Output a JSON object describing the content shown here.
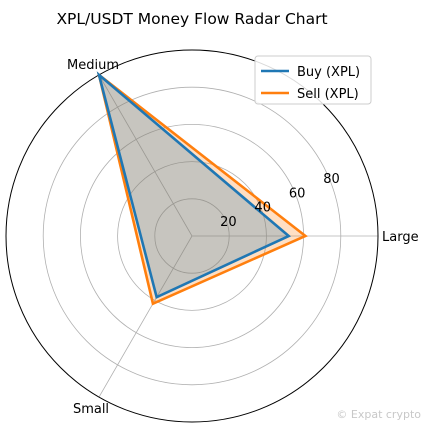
{
  "chart_data": {
    "type": "radar",
    "title": "XPL/USDT Money Flow Radar Chart",
    "categories": [
      "Large",
      "Medium",
      "Small"
    ],
    "radial_ticks": [
      20,
      40,
      60,
      80
    ],
    "rlim": [
      0,
      100
    ],
    "grid": true,
    "legend_position": "top-right",
    "series": [
      {
        "name": "Buy (XPL)",
        "values": [
          52,
          100,
          38
        ],
        "color": "#1f77b4",
        "fill": "#1f77b4"
      },
      {
        "name": "Sell (XPL)",
        "values": [
          61,
          100,
          42
        ],
        "color": "#ff7f0e",
        "fill": "#ff7f0e"
      }
    ]
  },
  "watermark": "© Expat crypto"
}
